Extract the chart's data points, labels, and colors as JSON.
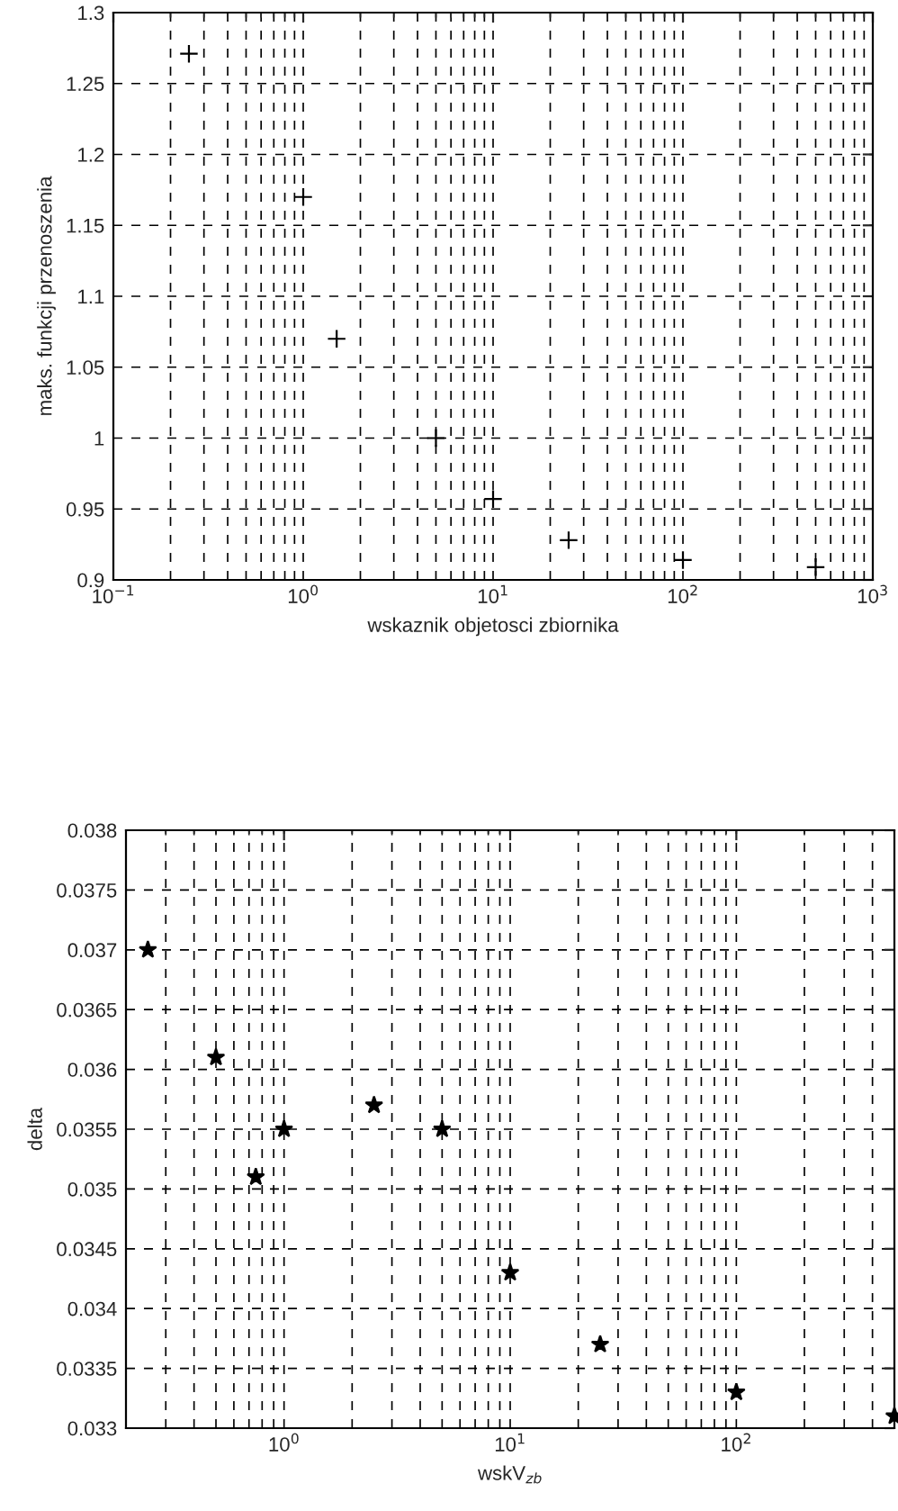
{
  "chart_data": [
    {
      "type": "scatter",
      "xlabel": "wskaznik objetosci zbiornika",
      "ylabel": "maks. funkcji przenoszenia",
      "log": "x",
      "grid": true,
      "marker": "cross",
      "x": [
        0.25,
        1,
        1.5,
        5,
        10,
        25,
        100,
        500
      ],
      "series": [
        {
          "color": "#000000",
          "values": [
            1.271,
            1.17,
            1.07,
            1.0,
            0.957,
            0.928,
            0.914,
            0.909
          ]
        }
      ],
      "xlim": [
        0.1,
        1000
      ],
      "ylim": [
        0.9,
        1.3
      ],
      "xticks": [
        {
          "value": 0.1,
          "label": "10$^{−1}$"
        },
        {
          "value": 1,
          "label": "10$^{0}$"
        },
        {
          "value": 10,
          "label": "10$^{1}$"
        },
        {
          "value": 100,
          "label": "10$^{2}$"
        },
        {
          "value": 1000,
          "label": "10$^{3}$"
        }
      ],
      "yticks": [
        0.9,
        0.95,
        1,
        1.05,
        1.1,
        1.15,
        1.2,
        1.25,
        1.3
      ]
    },
    {
      "type": "scatter",
      "xlabel": "wskV$_{zb}$",
      "ylabel": "delta",
      "log": "x",
      "grid": true,
      "marker": "star",
      "x": [
        0.25,
        0.5,
        0.75,
        1,
        2.5,
        5,
        10,
        25,
        100,
        500
      ],
      "series": [
        {
          "color": "#000000",
          "values": [
            0.037,
            0.0361,
            0.0351,
            0.0355,
            0.0357,
            0.0355,
            0.0343,
            0.0337,
            0.0333,
            0.0331
          ]
        }
      ],
      "xlim": [
        0.2,
        500
      ],
      "ylim": [
        0.033,
        0.038
      ],
      "xticks": [
        {
          "value": 1,
          "label": "10$^{0}$"
        },
        {
          "value": 10,
          "label": "10$^{1}$"
        },
        {
          "value": 100,
          "label": "10$^{2}$"
        }
      ],
      "yticks": [
        0.033,
        0.0335,
        0.034,
        0.0345,
        0.035,
        0.0355,
        0.036,
        0.0365,
        0.037,
        0.0375,
        0.038
      ]
    }
  ]
}
